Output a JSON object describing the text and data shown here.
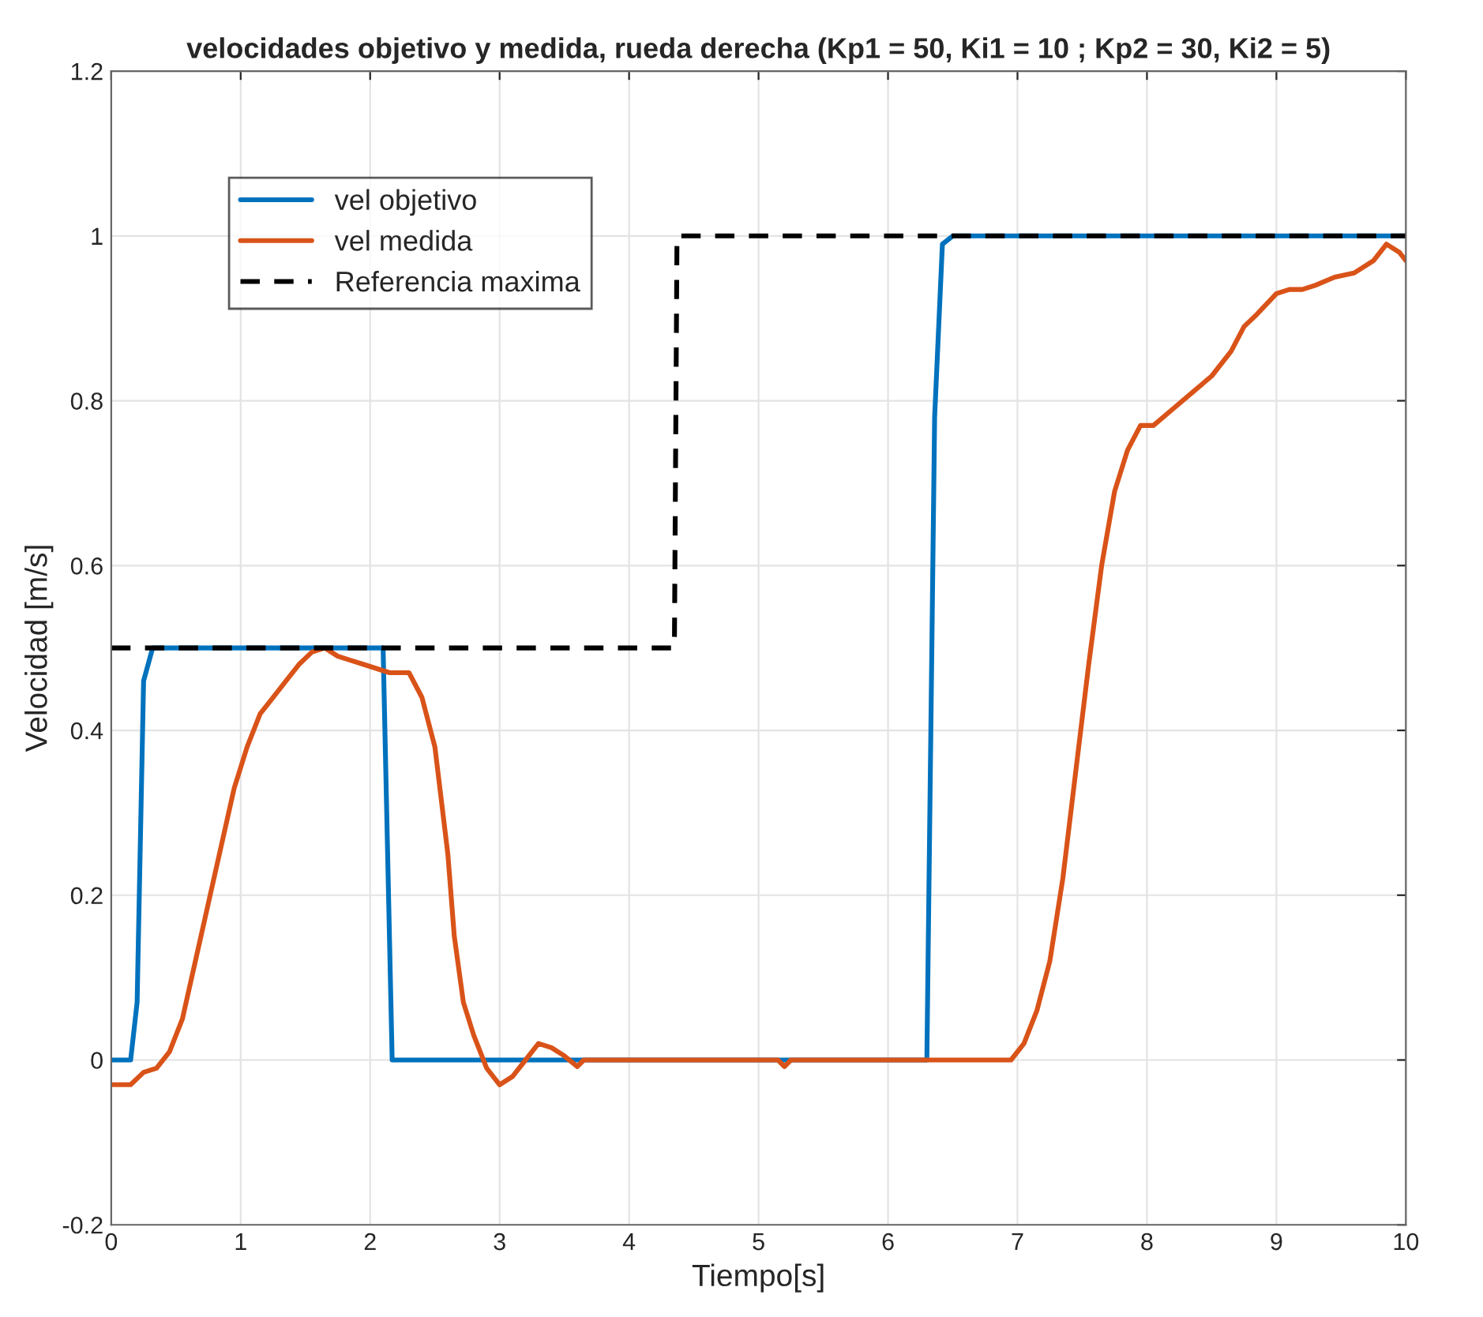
{
  "chart_data": {
    "type": "line",
    "title": "velocidades objetivo y medida, rueda derecha (Kp1 = 50, Ki1 = 10 ; Kp2 = 30, Ki2 = 5)",
    "xlabel": "Tiempo[s]",
    "ylabel": "Velocidad [m/s]",
    "xlim": [
      0,
      10
    ],
    "xticks": [
      0,
      1,
      2,
      3,
      4,
      5,
      6,
      7,
      8,
      9,
      10
    ],
    "ylim": [
      -0.2,
      1.2
    ],
    "yticks": [
      -0.2,
      0,
      0.2,
      0.4,
      0.6,
      0.8,
      1,
      1.2
    ],
    "grid": true,
    "legend": "top left",
    "series": [
      {
        "name": "vel objetivo",
        "color": "#0072bd",
        "line_style": "solid",
        "x": [
          0,
          0.15,
          0.2,
          0.25,
          0.32,
          2.1,
          2.17,
          6.3,
          6.36,
          6.42,
          6.5,
          10
        ],
        "values": [
          0,
          0,
          0.07,
          0.46,
          0.5,
          0.5,
          0,
          0,
          0.78,
          0.99,
          1,
          1
        ]
      },
      {
        "name": "vel medida",
        "color": "#d95319",
        "line_style": "solid",
        "x": [
          0,
          0.15,
          0.25,
          0.35,
          0.45,
          0.55,
          0.65,
          0.75,
          0.85,
          0.95,
          1.05,
          1.15,
          1.25,
          1.35,
          1.45,
          1.55,
          1.65,
          1.75,
          1.85,
          1.95,
          2.05,
          2.15,
          2.3,
          2.4,
          2.5,
          2.6,
          2.65,
          2.72,
          2.8,
          2.9,
          3.0,
          3.1,
          3.2,
          3.3,
          3.4,
          3.5,
          3.6,
          3.65,
          5.15,
          5.2,
          5.25,
          6.95,
          7.05,
          7.15,
          7.25,
          7.35,
          7.45,
          7.55,
          7.65,
          7.75,
          7.85,
          7.95,
          8.05,
          8.2,
          8.35,
          8.5,
          8.65,
          8.75,
          8.85,
          9.0,
          9.1,
          9.2,
          9.3,
          9.45,
          9.6,
          9.75,
          9.85,
          9.95,
          10
        ],
        "values": [
          -0.03,
          -0.03,
          -0.015,
          -0.01,
          0.01,
          0.05,
          0.12,
          0.19,
          0.26,
          0.33,
          0.38,
          0.42,
          0.44,
          0.46,
          0.48,
          0.495,
          0.5,
          0.49,
          0.485,
          0.48,
          0.475,
          0.47,
          0.47,
          0.44,
          0.38,
          0.25,
          0.15,
          0.07,
          0.03,
          -0.01,
          -0.03,
          -0.02,
          0.0,
          0.02,
          0.015,
          0.005,
          -0.008,
          0,
          0,
          -0.008,
          0,
          0,
          0.02,
          0.06,
          0.12,
          0.22,
          0.35,
          0.48,
          0.6,
          0.69,
          0.74,
          0.77,
          0.77,
          0.79,
          0.81,
          0.83,
          0.86,
          0.89,
          0.905,
          0.93,
          0.935,
          0.935,
          0.94,
          0.95,
          0.955,
          0.97,
          0.99,
          0.98,
          0.97
        ]
      },
      {
        "name": "Referencia maxima",
        "color": "#000000",
        "line_style": "dashed",
        "x": [
          0,
          4.35,
          4.37,
          10
        ],
        "values": [
          0.5,
          0.5,
          1,
          1
        ]
      }
    ]
  }
}
